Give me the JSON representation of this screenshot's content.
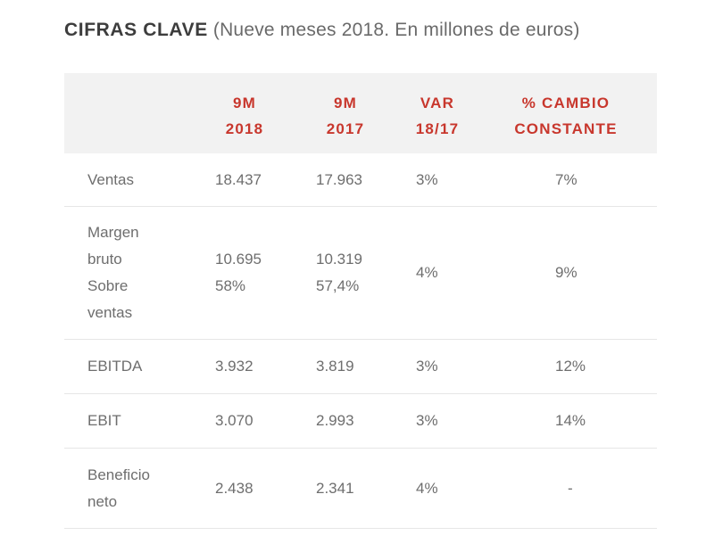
{
  "title": {
    "strong": "CIFRAS CLAVE",
    "subtitle": "(Nueve meses 2018. En millones de euros)"
  },
  "header": {
    "col_2018": [
      "9M",
      "2018"
    ],
    "col_2017": [
      "9M",
      "2017"
    ],
    "col_var": [
      "VAR",
      "18/17"
    ],
    "col_change": [
      "% CAMBIO",
      "CONSTANTE"
    ]
  },
  "rows": [
    {
      "label": [
        "Ventas"
      ],
      "v2018": [
        "18.437"
      ],
      "v2017": [
        "17.963"
      ],
      "var": "3%",
      "change": "7%"
    },
    {
      "label": [
        "Margen",
        "bruto",
        "Sobre",
        "ventas"
      ],
      "v2018": [
        "10.695",
        "58%"
      ],
      "v2017": [
        "10.319",
        "57,4%"
      ],
      "var": "4%",
      "change": "9%"
    },
    {
      "label": [
        "EBITDA"
      ],
      "v2018": [
        "3.932"
      ],
      "v2017": [
        "3.819"
      ],
      "var": "3%",
      "change": "12%"
    },
    {
      "label": [
        "EBIT"
      ],
      "v2018": [
        "3.070"
      ],
      "v2017": [
        "2.993"
      ],
      "var": "3%",
      "change": "14%"
    },
    {
      "label": [
        "Beneficio",
        "neto"
      ],
      "v2018": [
        "2.438"
      ],
      "v2017": [
        "2.341"
      ],
      "var": "4%",
      "change": "-"
    }
  ]
}
